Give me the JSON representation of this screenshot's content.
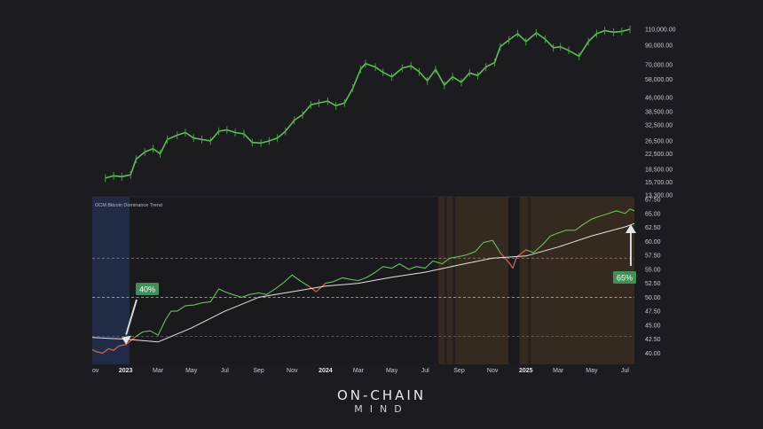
{
  "chart_data": [
    {
      "type": "line",
      "panel": "price",
      "scale": "log",
      "y_ticks": [
        "110,000.00",
        "90,000.00",
        "70,000.00",
        "58,000.00",
        "46,000.00",
        "38,500.00",
        "32,500.00",
        "26,500.00",
        "22,500.00",
        "18,500.00",
        "15,700.00",
        "13,300.00"
      ],
      "x": [
        "2022-11-25",
        "2022-12-10",
        "2022-12-25",
        "2023-01-10",
        "2023-01-20",
        "2023-02-05",
        "2023-02-20",
        "2023-03-05",
        "2023-03-18",
        "2023-04-05",
        "2023-04-20",
        "2023-05-05",
        "2023-05-20",
        "2023-06-05",
        "2023-06-20",
        "2023-07-05",
        "2023-07-20",
        "2023-08-05",
        "2023-08-20",
        "2023-09-05",
        "2023-09-20",
        "2023-10-05",
        "2023-10-20",
        "2023-11-05",
        "2023-11-20",
        "2023-12-05",
        "2023-12-20",
        "2024-01-05",
        "2024-01-20",
        "2024-02-05",
        "2024-02-20",
        "2024-03-05",
        "2024-03-14",
        "2024-04-01",
        "2024-04-15",
        "2024-05-01",
        "2024-05-20",
        "2024-06-05",
        "2024-06-20",
        "2024-07-05",
        "2024-07-20",
        "2024-08-05",
        "2024-08-20",
        "2024-09-05",
        "2024-09-20",
        "2024-10-05",
        "2024-10-20",
        "2024-11-05",
        "2024-11-15",
        "2024-12-01",
        "2024-12-17",
        "2025-01-01",
        "2025-01-20",
        "2025-02-05",
        "2025-02-20",
        "2025-03-05",
        "2025-03-20",
        "2025-04-08",
        "2025-04-25",
        "2025-05-10",
        "2025-05-25",
        "2025-06-10",
        "2025-06-25",
        "2025-07-10"
      ],
      "values": [
        16500,
        17000,
        16800,
        17200,
        21000,
        23000,
        24000,
        22500,
        27000,
        28500,
        29500,
        27500,
        27000,
        26500,
        30000,
        30500,
        29500,
        29000,
        26000,
        25800,
        26500,
        27500,
        30000,
        34500,
        37000,
        42000,
        43000,
        44000,
        41500,
        43000,
        52000,
        66000,
        71000,
        68000,
        63500,
        60000,
        67000,
        69000,
        64000,
        57000,
        66000,
        54000,
        60000,
        56000,
        63000,
        61000,
        68000,
        72000,
        88000,
        96000,
        104000,
        94000,
        105000,
        97000,
        87000,
        88000,
        84000,
        78000,
        94000,
        104000,
        108000,
        106000,
        107000,
        110000
      ]
    },
    {
      "type": "line",
      "panel": "indicator",
      "title": "OCM Bitcoin Dominance Trend",
      "ylim": [
        38,
        68
      ],
      "y_ticks": [
        "67.50",
        "65.00",
        "62.50",
        "60.00",
        "57.50",
        "55.00",
        "52.50",
        "50.00",
        "47.50",
        "45.00",
        "42.50",
        "40.00"
      ],
      "x_ticks": [
        "ov",
        "2023",
        "Mar",
        "May",
        "Jul",
        "Sep",
        "Nov",
        "2024",
        "Mar",
        "May",
        "Jul",
        "Sep",
        "Nov",
        "2025",
        "Mar",
        "May",
        "Jul"
      ],
      "bold_ticks": [
        "2023",
        "2024",
        "2025"
      ],
      "x_start": "2022-11-01",
      "x_end": "2025-07-18",
      "reference_lines": [
        {
          "value": 57,
          "color": "#c26b34"
        },
        {
          "value": 50,
          "color": "#b9b9c0"
        },
        {
          "value": 43,
          "color": "#5a5fd0"
        }
      ],
      "series": [
        {
          "color": "#67c25b",
          "x": [
            "2022-11-01",
            "2022-11-10",
            "2022-11-20",
            "2022-12-01",
            "2022-12-10",
            "2022-12-20",
            "2023-01-01",
            "2023-01-10",
            "2023-01-20",
            "2023-02-01",
            "2023-02-15",
            "2023-03-01",
            "2023-03-15",
            "2023-03-25",
            "2023-04-05",
            "2023-04-20",
            "2023-05-05",
            "2023-05-20",
            "2023-06-05",
            "2023-06-20",
            "2023-07-01",
            "2023-07-15",
            "2023-08-01",
            "2023-08-15",
            "2023-09-01",
            "2023-09-15",
            "2023-10-01",
            "2023-10-15",
            "2023-11-01",
            "2023-11-15",
            "2023-12-01",
            "2023-12-15",
            "2024-01-01",
            "2024-01-15",
            "2024-02-01",
            "2024-02-15",
            "2024-03-01",
            "2024-03-15",
            "2024-04-01",
            "2024-04-15",
            "2024-05-01",
            "2024-05-15",
            "2024-06-01",
            "2024-06-15",
            "2024-07-01",
            "2024-07-15",
            "2024-08-01",
            "2024-08-15",
            "2024-09-01",
            "2024-09-15",
            "2024-10-01",
            "2024-10-15",
            "2024-11-01",
            "2024-11-15",
            "2024-12-01",
            "2024-12-08",
            "2024-12-15",
            "2025-01-01",
            "2025-01-15",
            "2025-02-01",
            "2025-02-15",
            "2025-03-01",
            "2025-03-15",
            "2025-04-01",
            "2025-04-15",
            "2025-05-01",
            "2025-05-15",
            "2025-06-01",
            "2025-06-15",
            "2025-07-01",
            "2025-07-10",
            "2025-07-18"
          ],
          "values": [
            40.6,
            40.2,
            40.0,
            40.8,
            40.5,
            41.3,
            41.5,
            42.2,
            43.0,
            43.8,
            44.0,
            43.2,
            46.0,
            47.5,
            47.5,
            48.5,
            48.6,
            49.0,
            49.2,
            51.5,
            51.0,
            50.5,
            50.0,
            50.5,
            50.8,
            50.5,
            51.5,
            52.5,
            54.0,
            53.0,
            52.0,
            51.0,
            52.5,
            52.8,
            53.5,
            53.2,
            53.0,
            53.5,
            54.5,
            55.5,
            55.2,
            56.0,
            55.0,
            55.5,
            55.2,
            56.5,
            56.0,
            57.0,
            57.3,
            57.6,
            58.2,
            59.8,
            60.2,
            58.0,
            56.2,
            55.2,
            57.2,
            58.5,
            58.0,
            59.5,
            61.0,
            61.5,
            62.0,
            62.0,
            63.0,
            64.0,
            64.5,
            65.0,
            65.5,
            65.0,
            65.8,
            65.5
          ]
        },
        {
          "color": "#e7e2dc",
          "x": [
            "2022-11-01",
            "2023-01-01",
            "2023-03-01",
            "2023-05-01",
            "2023-07-01",
            "2023-09-01",
            "2023-11-01",
            "2024-01-01",
            "2024-03-01",
            "2024-05-01",
            "2024-07-01",
            "2024-09-01",
            "2024-11-01",
            "2025-01-01",
            "2025-03-01",
            "2025-05-01",
            "2025-07-01",
            "2025-07-18"
          ],
          "values": [
            42.8,
            42.5,
            42.0,
            44.5,
            47.5,
            50.0,
            51.0,
            52.0,
            52.5,
            53.6,
            54.5,
            55.8,
            57.0,
            57.4,
            59.0,
            61.0,
            62.6,
            63.2
          ]
        }
      ],
      "shaded_periods": [
        {
          "start": "2022-11-01",
          "end": "2023-01-08",
          "color": "#2a3a66"
        },
        {
          "start": "2024-07-25",
          "end": "2024-11-30",
          "color": "#4a3920"
        },
        {
          "start": "2024-12-20",
          "end": "2025-07-18",
          "color": "#4a3920"
        }
      ],
      "annotations": [
        {
          "label": "40%",
          "at": "2023-01-05",
          "value": 42.5,
          "color": "#3f8f57"
        },
        {
          "label": "65%",
          "at": "2025-07-12",
          "value": 65.5,
          "color": "#3f8f57"
        }
      ]
    }
  ],
  "brand": {
    "line1": "ON-CHAIN",
    "line2": "MIND"
  }
}
